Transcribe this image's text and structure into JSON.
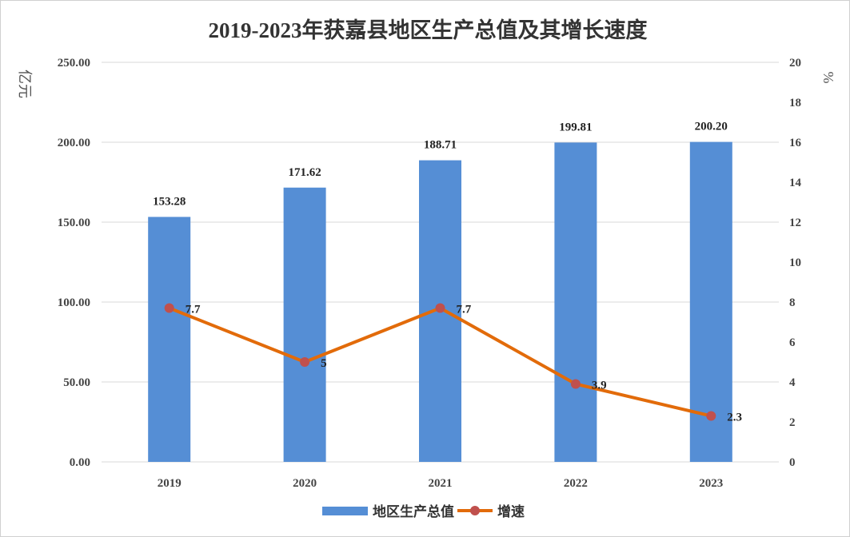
{
  "chart_data": {
    "type": "bar",
    "title": "2019-2023年获嘉县地区生产总值及其增长速度",
    "categories": [
      "2019",
      "2020",
      "2021",
      "2022",
      "2023"
    ],
    "series": [
      {
        "name": "地区生产总值",
        "type": "bar",
        "axis": "left",
        "values": [
          153.28,
          171.62,
          188.71,
          199.81,
          200.2
        ],
        "data_labels": [
          "153.28",
          "171.62",
          "188.71",
          "199.81",
          "200.20"
        ],
        "color": "#558ED5"
      },
      {
        "name": "增速",
        "type": "line",
        "axis": "right",
        "values": [
          7.7,
          5,
          7.7,
          3.9,
          2.3
        ],
        "data_labels": [
          "7.7",
          "5",
          "7.7",
          "3.9",
          "2.3"
        ],
        "color": "#E26B0A",
        "marker_color": "#C0504D"
      }
    ],
    "y_left": {
      "label": "亿元",
      "range": [
        0,
        250
      ],
      "ticks": [
        "0.00",
        "50.00",
        "100.00",
        "150.00",
        "200.00",
        "250.00"
      ],
      "tick_values": [
        0,
        50,
        100,
        150,
        200,
        250
      ]
    },
    "y_right": {
      "label": "%",
      "range": [
        0,
        20
      ],
      "ticks": [
        "0",
        "2",
        "4",
        "6",
        "8",
        "10",
        "12",
        "14",
        "16",
        "18",
        "20"
      ],
      "tick_values": [
        0,
        2,
        4,
        6,
        8,
        10,
        12,
        14,
        16,
        18,
        20
      ]
    },
    "grid": true,
    "legend_position": "bottom"
  }
}
